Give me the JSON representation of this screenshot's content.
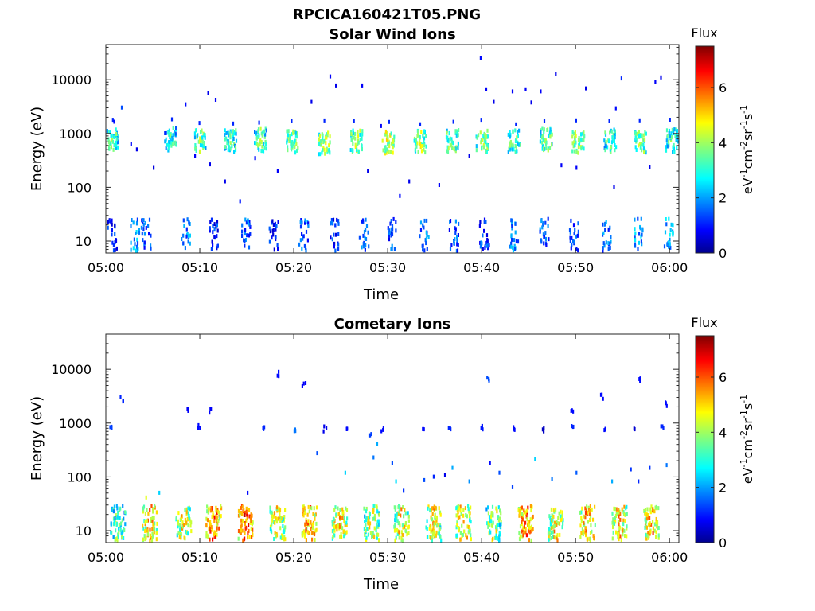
{
  "figure_title": "RPCICA160421T05.PNG",
  "chart_data": [
    {
      "type": "heatmap",
      "title": "Solar Wind Ions",
      "xlabel": "Time",
      "ylabel": "Energy (eV)",
      "yscale": "log",
      "ylim": [
        6,
        45000
      ],
      "xlim": [
        "05:00",
        "06:01"
      ],
      "xticks": [
        "05:00",
        "05:10",
        "05:20",
        "05:30",
        "05:40",
        "05:50",
        "06:00"
      ],
      "yticks": [
        "10",
        "100",
        "1000",
        "10000"
      ],
      "colorbar": {
        "label": "Flux",
        "units": "eV-1cm-2sr-1s-1",
        "range": [
          0,
          7.5
        ],
        "ticks": [
          "0",
          "2",
          "4",
          "6"
        ]
      },
      "clusters": [
        {
          "t": 0.6,
          "e": 800,
          "v": 3.5
        },
        {
          "t": 6.8,
          "e": 850,
          "v": 3.2
        },
        {
          "t": 10.0,
          "e": 780,
          "v": 3.6
        },
        {
          "t": 13.2,
          "e": 800,
          "v": 3.4
        },
        {
          "t": 16.4,
          "e": 820,
          "v": 3.5
        },
        {
          "t": 19.8,
          "e": 760,
          "v": 3.8
        },
        {
          "t": 23.2,
          "e": 720,
          "v": 4.2
        },
        {
          "t": 26.6,
          "e": 780,
          "v": 3.9
        },
        {
          "t": 30.0,
          "e": 750,
          "v": 4.4
        },
        {
          "t": 33.4,
          "e": 780,
          "v": 4.0
        },
        {
          "t": 36.8,
          "e": 800,
          "v": 3.8
        },
        {
          "t": 40.0,
          "e": 760,
          "v": 3.9
        },
        {
          "t": 43.4,
          "e": 800,
          "v": 3.6
        },
        {
          "t": 46.8,
          "e": 820,
          "v": 3.7
        },
        {
          "t": 50.2,
          "e": 760,
          "v": 4.0
        },
        {
          "t": 53.6,
          "e": 800,
          "v": 3.4
        },
        {
          "t": 56.8,
          "e": 780,
          "v": 3.8
        },
        {
          "t": 60.2,
          "e": 800,
          "v": 3.3
        }
      ],
      "low_energy_bands": [
        {
          "t": 0.6,
          "v": 1.2
        },
        {
          "t": 3.0,
          "v": 2.0
        },
        {
          "t": 4.2,
          "v": 1.5
        },
        {
          "t": 8.4,
          "v": 1.8
        },
        {
          "t": 11.4,
          "v": 1.2
        },
        {
          "t": 14.8,
          "v": 1.6
        },
        {
          "t": 17.8,
          "v": 1.0
        },
        {
          "t": 21.0,
          "v": 1.6
        },
        {
          "t": 24.2,
          "v": 1.3
        },
        {
          "t": 27.4,
          "v": 1.8
        },
        {
          "t": 30.4,
          "v": 1.4
        },
        {
          "t": 33.8,
          "v": 1.7
        },
        {
          "t": 37.0,
          "v": 1.5
        },
        {
          "t": 40.2,
          "v": 1.3
        },
        {
          "t": 43.4,
          "v": 1.8
        },
        {
          "t": 46.6,
          "v": 1.6
        },
        {
          "t": 49.8,
          "v": 1.3
        },
        {
          "t": 53.2,
          "v": 1.7
        },
        {
          "t": 56.6,
          "v": 2.0
        },
        {
          "t": 59.8,
          "v": 2.2
        }
      ],
      "scatter": [
        {
          "t": 0.8,
          "e": 1800,
          "v": 1.0
        },
        {
          "t": 1.6,
          "e": 3300,
          "v": 1.5
        },
        {
          "t": 2.6,
          "e": 700,
          "v": 1.0
        },
        {
          "t": 3.2,
          "e": 550,
          "v": 0.8
        },
        {
          "t": 5.0,
          "e": 250,
          "v": 0.7
        },
        {
          "t": 6.2,
          "e": 1100,
          "v": 1.2
        },
        {
          "t": 8.4,
          "e": 3800,
          "v": 1.0
        },
        {
          "t": 9.4,
          "e": 420,
          "v": 0.9
        },
        {
          "t": 10.8,
          "e": 6200,
          "v": 0.8
        },
        {
          "t": 11.6,
          "e": 4600,
          "v": 0.9
        },
        {
          "t": 11.0,
          "e": 290,
          "v": 0.8
        },
        {
          "t": 12.6,
          "e": 140,
          "v": 0.8
        },
        {
          "t": 14.2,
          "e": 60,
          "v": 1.1
        },
        {
          "t": 15.8,
          "e": 380,
          "v": 1.0
        },
        {
          "t": 18.2,
          "e": 220,
          "v": 0.9
        },
        {
          "t": 21.8,
          "e": 4200,
          "v": 0.8
        },
        {
          "t": 23.8,
          "e": 12500,
          "v": 0.9
        },
        {
          "t": 24.4,
          "e": 8500,
          "v": 0.8
        },
        {
          "t": 27.2,
          "e": 8500,
          "v": 0.9
        },
        {
          "t": 27.8,
          "e": 220,
          "v": 0.8
        },
        {
          "t": 29.2,
          "e": 1500,
          "v": 0.9
        },
        {
          "t": 31.2,
          "e": 75,
          "v": 1.0
        },
        {
          "t": 32.2,
          "e": 140,
          "v": 0.8
        },
        {
          "t": 35.4,
          "e": 120,
          "v": 0.9
        },
        {
          "t": 38.6,
          "e": 420,
          "v": 0.8
        },
        {
          "t": 39.8,
          "e": 27000,
          "v": 1.0
        },
        {
          "t": 40.4,
          "e": 7200,
          "v": 0.9
        },
        {
          "t": 41.2,
          "e": 4200,
          "v": 0.8
        },
        {
          "t": 43.2,
          "e": 6600,
          "v": 0.9
        },
        {
          "t": 44.6,
          "e": 7200,
          "v": 0.9
        },
        {
          "t": 45.2,
          "e": 4100,
          "v": 0.8
        },
        {
          "t": 46.2,
          "e": 6600,
          "v": 0.9
        },
        {
          "t": 47.8,
          "e": 14000,
          "v": 0.8
        },
        {
          "t": 48.4,
          "e": 280,
          "v": 0.9
        },
        {
          "t": 51.0,
          "e": 7500,
          "v": 0.8
        },
        {
          "t": 54.8,
          "e": 11500,
          "v": 1.2
        },
        {
          "t": 54.2,
          "e": 3200,
          "v": 1.0
        },
        {
          "t": 58.4,
          "e": 10000,
          "v": 0.9
        },
        {
          "t": 59.0,
          "e": 12000,
          "v": 0.8
        },
        {
          "t": 57.8,
          "e": 260,
          "v": 0.8
        },
        {
          "t": 54.0,
          "e": 110,
          "v": 0.8
        },
        {
          "t": 50.0,
          "e": 250,
          "v": 0.9
        }
      ]
    },
    {
      "type": "heatmap",
      "title": "Cometary Ions",
      "xlabel": "Time",
      "ylabel": "Energy (eV)",
      "yscale": "log",
      "ylim": [
        6,
        45000
      ],
      "xlim": [
        "05:00",
        "06:01"
      ],
      "xticks": [
        "05:00",
        "05:10",
        "05:20",
        "05:30",
        "05:40",
        "05:50",
        "06:00"
      ],
      "yticks": [
        "10",
        "100",
        "1000",
        "10000"
      ],
      "colorbar": {
        "label": "Flux",
        "units": "eV-1cm-2sr-1s-1",
        "range": [
          0,
          7.5
        ],
        "ticks": [
          "0",
          "2",
          "4",
          "6"
        ]
      },
      "clusters": [
        {
          "t": 1.2,
          "e": 20,
          "v": 3.5
        },
        {
          "t": 4.6,
          "e": 20,
          "v": 5.2
        },
        {
          "t": 8.2,
          "e": 20,
          "v": 4.6
        },
        {
          "t": 11.4,
          "e": 20,
          "v": 5.8
        },
        {
          "t": 14.8,
          "e": 20,
          "v": 6.0
        },
        {
          "t": 18.2,
          "e": 20,
          "v": 4.8
        },
        {
          "t": 21.6,
          "e": 20,
          "v": 5.4
        },
        {
          "t": 24.8,
          "e": 20,
          "v": 5.0
        },
        {
          "t": 28.2,
          "e": 20,
          "v": 4.5
        },
        {
          "t": 31.4,
          "e": 20,
          "v": 4.8
        },
        {
          "t": 34.8,
          "e": 20,
          "v": 4.7
        },
        {
          "t": 38.0,
          "e": 20,
          "v": 4.9
        },
        {
          "t": 41.2,
          "e": 20,
          "v": 4.3
        },
        {
          "t": 44.6,
          "e": 20,
          "v": 5.6
        },
        {
          "t": 47.8,
          "e": 20,
          "v": 4.9
        },
        {
          "t": 51.2,
          "e": 20,
          "v": 5.3
        },
        {
          "t": 54.6,
          "e": 20,
          "v": 5.0
        },
        {
          "t": 58.0,
          "e": 20,
          "v": 5.2
        }
      ],
      "mid_band": [
        {
          "t": 0.4,
          "e": 950,
          "v": 1.4
        },
        {
          "t": 1.6,
          "e": 3000,
          "v": 1.2
        },
        {
          "t": 8.6,
          "e": 1900,
          "v": 0.9
        },
        {
          "t": 9.8,
          "e": 900,
          "v": 1.0
        },
        {
          "t": 11.0,
          "e": 1900,
          "v": 0.9
        },
        {
          "t": 16.8,
          "e": 850,
          "v": 1.2
        },
        {
          "t": 18.2,
          "e": 9000,
          "v": 1.0
        },
        {
          "t": 21.0,
          "e": 5600,
          "v": 0.9
        },
        {
          "t": 20.0,
          "e": 800,
          "v": 1.8
        },
        {
          "t": 23.2,
          "e": 850,
          "v": 0.8
        },
        {
          "t": 25.6,
          "e": 800,
          "v": 1.0
        },
        {
          "t": 28.0,
          "e": 700,
          "v": 1.4
        },
        {
          "t": 29.4,
          "e": 800,
          "v": 1.0
        },
        {
          "t": 33.6,
          "e": 850,
          "v": 1.0
        },
        {
          "t": 36.6,
          "e": 850,
          "v": 1.2
        },
        {
          "t": 40.0,
          "e": 900,
          "v": 1.1
        },
        {
          "t": 40.6,
          "e": 7200,
          "v": 1.5
        },
        {
          "t": 43.4,
          "e": 850,
          "v": 1.0
        },
        {
          "t": 46.4,
          "e": 850,
          "v": 0.5
        },
        {
          "t": 49.6,
          "e": 900,
          "v": 1.2
        },
        {
          "t": 52.8,
          "e": 3300,
          "v": 1.0
        },
        {
          "t": 53.0,
          "e": 850,
          "v": 1.0
        },
        {
          "t": 56.2,
          "e": 850,
          "v": 0.6
        },
        {
          "t": 56.6,
          "e": 6600,
          "v": 1.0
        },
        {
          "t": 59.2,
          "e": 850,
          "v": 1.2
        },
        {
          "t": 59.6,
          "e": 2500,
          "v": 1.0
        },
        {
          "t": 49.6,
          "e": 1700,
          "v": 1.0
        }
      ],
      "scatter": [
        {
          "t": 4.2,
          "e": 45,
          "v": 4.5
        },
        {
          "t": 5.6,
          "e": 55,
          "v": 2.5
        },
        {
          "t": 15.0,
          "e": 55,
          "v": 1.0
        },
        {
          "t": 22.4,
          "e": 300,
          "v": 1.5
        },
        {
          "t": 25.4,
          "e": 130,
          "v": 2.5
        },
        {
          "t": 28.4,
          "e": 250,
          "v": 1.8
        },
        {
          "t": 28.8,
          "e": 450,
          "v": 2.2
        },
        {
          "t": 30.4,
          "e": 200,
          "v": 1.5
        },
        {
          "t": 30.8,
          "e": 90,
          "v": 2.6
        },
        {
          "t": 31.6,
          "e": 60,
          "v": 1.3
        },
        {
          "t": 33.8,
          "e": 95,
          "v": 1.5
        },
        {
          "t": 34.8,
          "e": 110,
          "v": 1.2
        },
        {
          "t": 36.0,
          "e": 120,
          "v": 0.8
        },
        {
          "t": 36.8,
          "e": 160,
          "v": 2.2
        },
        {
          "t": 38.6,
          "e": 90,
          "v": 2.0
        },
        {
          "t": 40.8,
          "e": 200,
          "v": 1.0
        },
        {
          "t": 41.8,
          "e": 130,
          "v": 1.5
        },
        {
          "t": 43.2,
          "e": 70,
          "v": 1.4
        },
        {
          "t": 45.6,
          "e": 230,
          "v": 2.5
        },
        {
          "t": 47.4,
          "e": 100,
          "v": 1.8
        },
        {
          "t": 50.0,
          "e": 130,
          "v": 1.6
        },
        {
          "t": 53.8,
          "e": 90,
          "v": 2.2
        },
        {
          "t": 55.8,
          "e": 150,
          "v": 1.3
        },
        {
          "t": 57.8,
          "e": 160,
          "v": 1.3
        },
        {
          "t": 59.6,
          "e": 180,
          "v": 1.8
        },
        {
          "t": 56.6,
          "e": 90,
          "v": 1.2
        }
      ]
    }
  ]
}
